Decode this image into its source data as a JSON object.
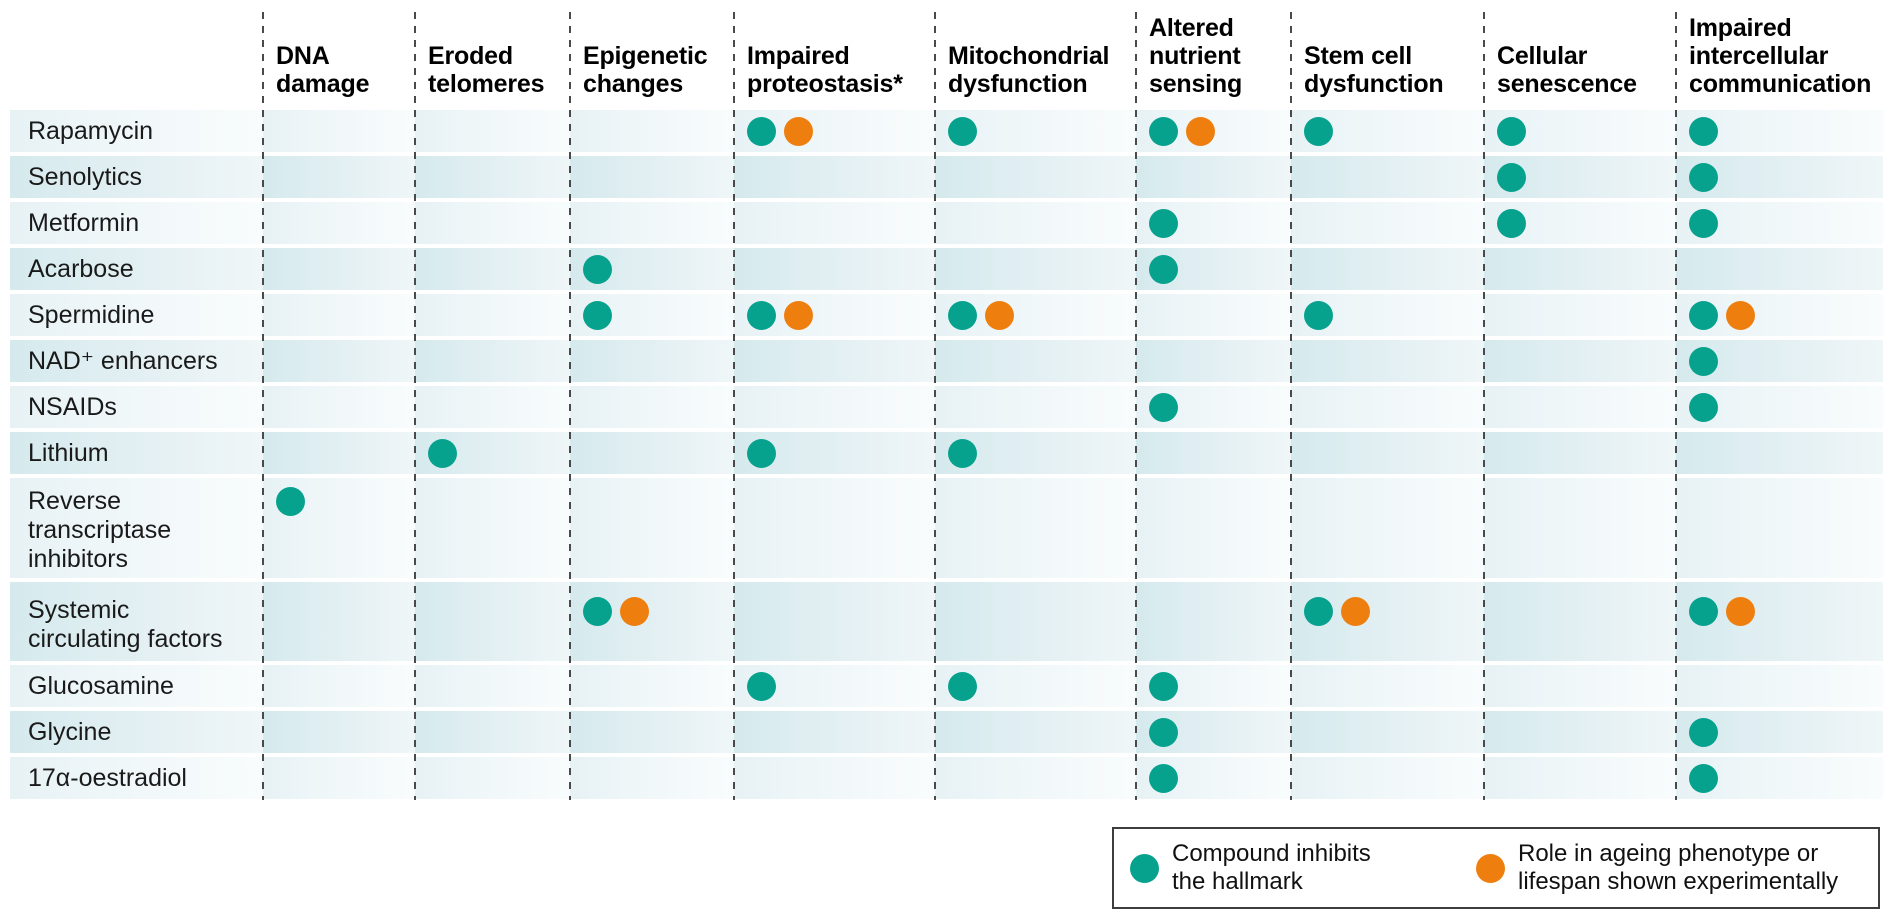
{
  "chart_data": {
    "type": "table",
    "title": "Compounds versus hallmarks of ageing matrix",
    "columns": [
      "DNA\ndamage",
      "Eroded\ntelomeres",
      "Epigenetic\nchanges",
      "Impaired\nproteostasis*",
      "Mitochondrial\ndysfunction",
      "Altered\nnutrient\nsensing",
      "Stem cell\ndysfunction",
      "Cellular\nsenescence",
      "Impaired\nintercellular\ncommunication"
    ],
    "mark_legend": {
      "T": "teal dot only - compound inhibits the hallmark",
      "TO": "teal dot plus orange dot - compound inhibits the hallmark and role in ageing phenotype or lifespan shown experimentally"
    },
    "rows": [
      {
        "label": "Rapamycin",
        "marks": [
          "",
          "",
          "",
          "TO",
          "T",
          "TO",
          "T",
          "T",
          "T"
        ]
      },
      {
        "label": "Senolytics",
        "marks": [
          "",
          "",
          "",
          "",
          "",
          "",
          "",
          "T",
          "T"
        ]
      },
      {
        "label": "Metformin",
        "marks": [
          "",
          "",
          "",
          "",
          "",
          "T",
          "",
          "T",
          "T"
        ]
      },
      {
        "label": "Acarbose",
        "marks": [
          "",
          "",
          "T",
          "",
          "",
          "T",
          "",
          "",
          ""
        ]
      },
      {
        "label": "Spermidine",
        "marks": [
          "",
          "",
          "T",
          "TO",
          "TO",
          "",
          "T",
          "",
          "TO"
        ]
      },
      {
        "label": "NAD⁺ enhancers",
        "marks": [
          "",
          "",
          "",
          "",
          "",
          "",
          "",
          "",
          "T"
        ]
      },
      {
        "label": "NSAIDs",
        "marks": [
          "",
          "",
          "",
          "",
          "",
          "T",
          "",
          "",
          "T"
        ]
      },
      {
        "label": "Lithium",
        "marks": [
          "",
          "T",
          "",
          "T",
          "T",
          "",
          "",
          "",
          ""
        ]
      },
      {
        "label": "Reverse\ntranscriptase\ninhibitors",
        "marks": [
          "T",
          "",
          "",
          "",
          "",
          "",
          "",
          "",
          ""
        ]
      },
      {
        "label": "Systemic\ncirculating factors",
        "marks": [
          "",
          "",
          "TO",
          "",
          "",
          "",
          "TO",
          "",
          "TO"
        ]
      },
      {
        "label": "Glucosamine",
        "marks": [
          "",
          "",
          "",
          "T",
          "T",
          "T",
          "",
          "",
          ""
        ]
      },
      {
        "label": "Glycine",
        "marks": [
          "",
          "",
          "",
          "",
          "",
          "T",
          "",
          "",
          "T"
        ]
      },
      {
        "label": "17α-oestradiol",
        "marks": [
          "",
          "",
          "",
          "",
          "",
          "T",
          "",
          "",
          "T"
        ]
      }
    ]
  },
  "legend": {
    "inhibits_label": "Compound inhibits\nthe hallmark",
    "experimental_label": "Role in ageing phenotype or\nlifespan shown experimentally"
  },
  "colors": {
    "teal": "#07a28d",
    "orange": "#ee7f0e"
  }
}
